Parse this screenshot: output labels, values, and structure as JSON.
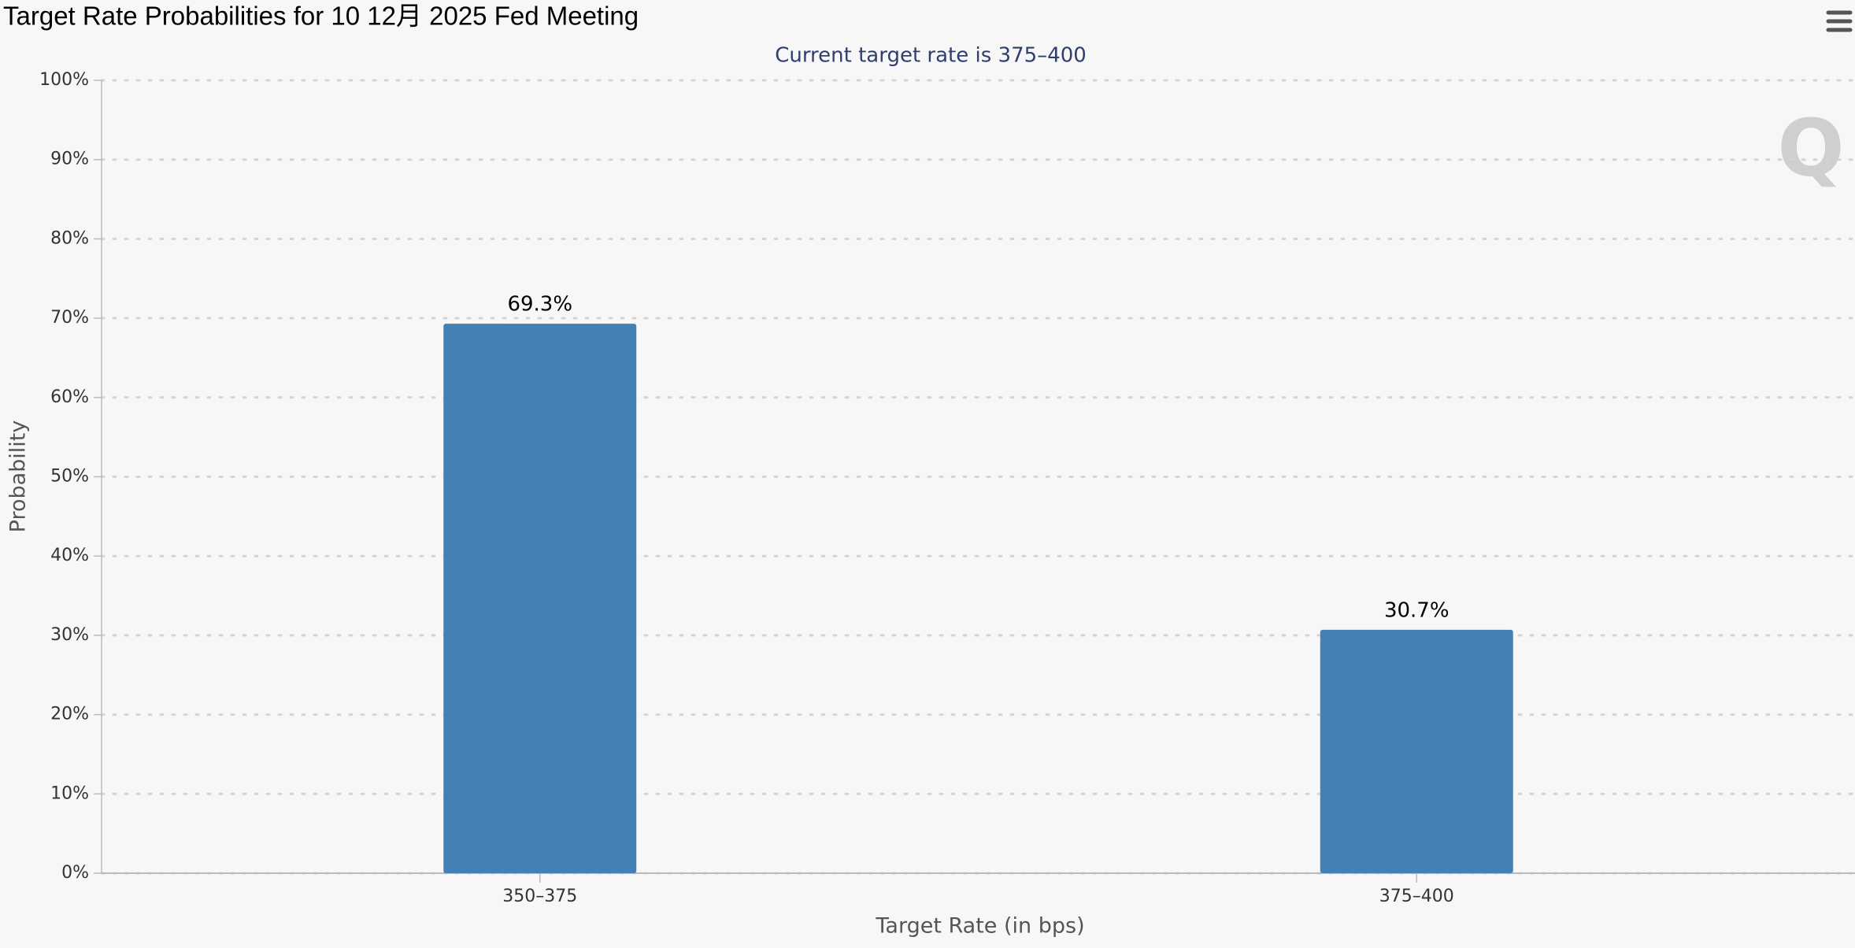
{
  "chart_data": {
    "type": "bar",
    "title": "Target Rate Probabilities for 10 12月 2025 Fed Meeting",
    "subtitle": "Current target rate is 375–400",
    "x_label": "Target Rate (in bps)",
    "y_label": "Probability",
    "categories": [
      "350–375",
      "375–400"
    ],
    "values": [
      69.3,
      30.7
    ],
    "value_labels": [
      "69.3%",
      "30.7%"
    ],
    "color": "#4380b6",
    "ylim": [
      0,
      100
    ],
    "yticks": [
      {
        "value": 0,
        "label": "0%"
      },
      {
        "value": 10,
        "label": "10%"
      },
      {
        "value": 20,
        "label": "20%"
      },
      {
        "value": 30,
        "label": "30%"
      },
      {
        "value": 40,
        "label": "40%"
      },
      {
        "value": 50,
        "label": "50%"
      },
      {
        "value": 60,
        "label": "60%"
      },
      {
        "value": 70,
        "label": "70%"
      },
      {
        "value": 80,
        "label": "80%"
      },
      {
        "value": 90,
        "label": "90%"
      },
      {
        "value": 100,
        "label": "100%"
      }
    ],
    "grid": true
  }
}
